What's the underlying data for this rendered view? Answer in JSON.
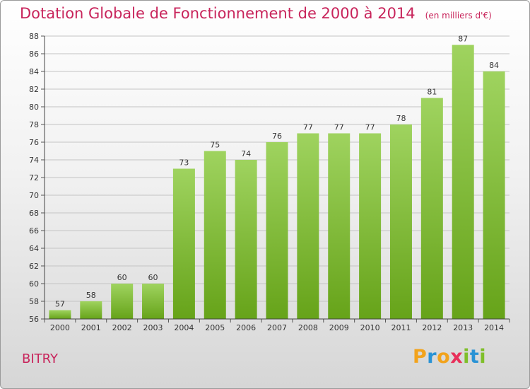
{
  "header": {
    "title": "Dotation Globale de Fonctionnement de 2000 à 2014",
    "subtitle": "(en milliers d'€)"
  },
  "footer": {
    "commune": "BITRY",
    "logo_letters": [
      "P",
      "r",
      "o",
      "x",
      "i",
      "t",
      "i"
    ],
    "logo_colors": [
      "#f2a31c",
      "#2a93d5",
      "#f2a31c",
      "#e8305a",
      "#7fbf2a",
      "#2a93d5",
      "#7fbf2a"
    ]
  },
  "colors": {
    "title": "#c8245b",
    "bar_top": "#9fd35f",
    "bar_bottom": "#66a319",
    "grid": "#c4c4c4"
  },
  "chart_data": {
    "type": "bar",
    "title": "Dotation Globale de Fonctionnement de 2000 à 2014",
    "subtitle": "(en milliers d'€)",
    "xlabel": "",
    "ylabel": "",
    "categories": [
      "2000",
      "2001",
      "2002",
      "2003",
      "2004",
      "2005",
      "2006",
      "2007",
      "2008",
      "2009",
      "2010",
      "2011",
      "2012",
      "2013",
      "2014"
    ],
    "values": [
      57,
      58,
      60,
      60,
      73,
      75,
      74,
      76,
      77,
      77,
      77,
      78,
      81,
      87,
      84
    ],
    "ylim": [
      56,
      88
    ],
    "yticks": [
      56,
      58,
      60,
      62,
      64,
      66,
      68,
      70,
      72,
      74,
      76,
      78,
      80,
      82,
      84,
      86,
      88
    ],
    "grid": true,
    "data_labels": true,
    "legend": "none"
  }
}
